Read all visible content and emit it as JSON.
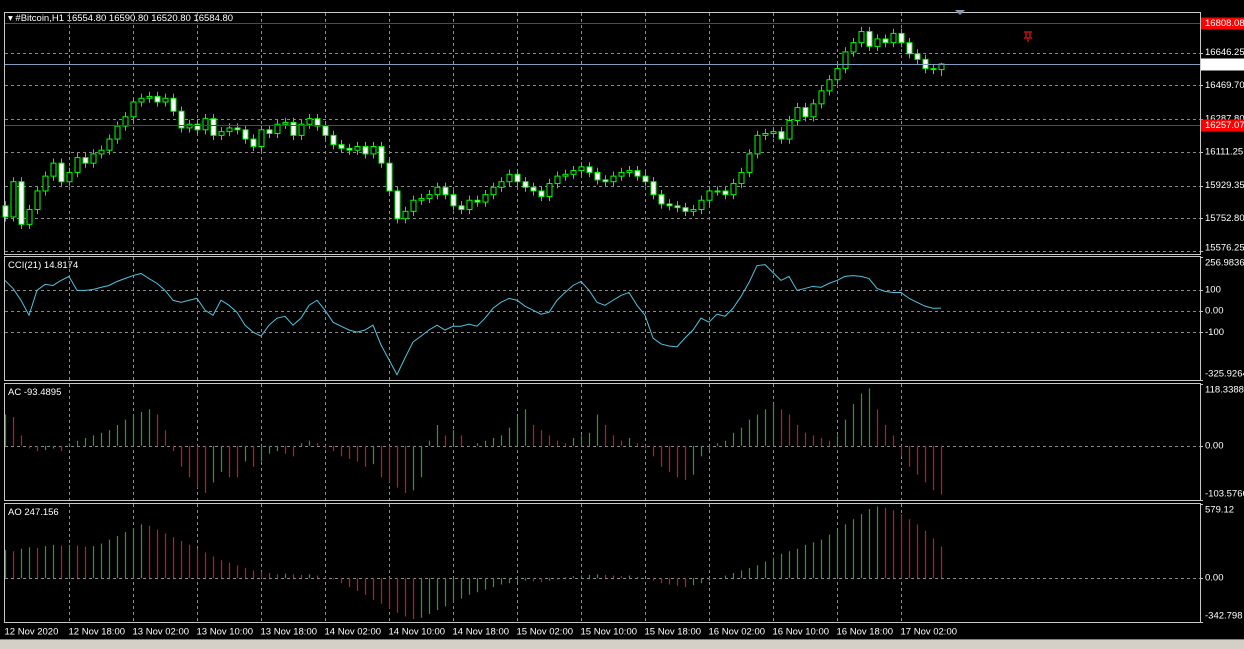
{
  "chart_data": [
    {
      "type": "candlestick",
      "title": "#Bitcoin,H1",
      "ohlc_labels": [
        "16554.80",
        "16590.80",
        "16520.80",
        "16584.80"
      ],
      "open": [
        15820,
        15760,
        15950,
        15720,
        15800,
        15900,
        15980,
        16050,
        15950,
        16000,
        16080,
        16050,
        16100,
        16120,
        16180,
        16250,
        16300,
        16380,
        16400,
        16410,
        16380,
        16400,
        16330,
        16240,
        16260,
        16230,
        16290,
        16200,
        16220,
        16240,
        16230,
        16180,
        16140,
        16230,
        16210,
        16260,
        16270,
        16200,
        16260,
        16290,
        16250,
        16200,
        16150,
        16130,
        16120,
        16140,
        16100,
        16140,
        16050,
        15900,
        15750,
        15790,
        15850,
        15860,
        15880,
        15920,
        15880,
        15820,
        15800,
        15850,
        15840,
        15880,
        15920,
        15950,
        15990,
        15950,
        15920,
        15900,
        15870,
        15940,
        15980,
        15990,
        16010,
        16030,
        16000,
        15960,
        15950,
        15980,
        16000,
        16010,
        15980,
        15950,
        15880,
        15830,
        15820,
        15810,
        15790,
        15800,
        15850,
        15900,
        15900,
        15880,
        15940,
        16000,
        16100,
        16200,
        16210,
        16220,
        16180,
        16280,
        16350,
        16300,
        16370,
        16440,
        16500,
        16560,
        16650,
        16700,
        16760,
        16680,
        16720,
        16700,
        16750,
        16700,
        16640,
        16610,
        16560,
        16554.8
      ],
      "high": [
        15845,
        15975,
        15975,
        15825,
        15925,
        16005,
        16075,
        16075,
        16025,
        16105,
        16105,
        16125,
        16145,
        16205,
        16275,
        16325,
        16405,
        16425,
        16435,
        16435,
        16425,
        16425,
        16355,
        16285,
        16285,
        16315,
        16315,
        16245,
        16265,
        16265,
        16255,
        16205,
        16255,
        16255,
        16285,
        16295,
        16295,
        16285,
        16315,
        16315,
        16275,
        16225,
        16175,
        16155,
        16165,
        16165,
        16165,
        16165,
        16075,
        15925,
        15815,
        15875,
        15885,
        15905,
        15945,
        15945,
        15905,
        15845,
        15875,
        15875,
        15905,
        15945,
        15975,
        16015,
        16015,
        15975,
        15945,
        15925,
        15965,
        16005,
        16015,
        16035,
        16055,
        16055,
        16025,
        15985,
        16005,
        16025,
        16035,
        16035,
        16005,
        15975,
        15905,
        15855,
        15845,
        15835,
        15825,
        15875,
        15925,
        15925,
        15925,
        15965,
        16025,
        16125,
        16225,
        16235,
        16245,
        16245,
        16305,
        16375,
        16375,
        16395,
        16465,
        16525,
        16585,
        16675,
        16725,
        16785,
        16785,
        16745,
        16745,
        16775,
        16775,
        16725,
        16665,
        16635,
        16585,
        16590.8
      ],
      "low": [
        15735,
        15735,
        15695,
        15695,
        15775,
        15875,
        15955,
        15925,
        15925,
        15975,
        16025,
        16025,
        16075,
        16095,
        16155,
        16225,
        16275,
        16355,
        16375,
        16355,
        16355,
        16305,
        16215,
        16215,
        16205,
        16205,
        16175,
        16175,
        16195,
        16205,
        16155,
        16115,
        16115,
        16185,
        16185,
        16235,
        16175,
        16175,
        16235,
        16225,
        16175,
        16125,
        16105,
        16095,
        16095,
        16075,
        16075,
        16025,
        15875,
        15725,
        15725,
        15765,
        15825,
        15835,
        15855,
        15855,
        15795,
        15775,
        15775,
        15815,
        15815,
        15855,
        15895,
        15925,
        15925,
        15895,
        15875,
        15845,
        15845,
        15915,
        15955,
        15965,
        15985,
        15975,
        15935,
        15925,
        15925,
        15955,
        15975,
        15955,
        15925,
        15855,
        15805,
        15795,
        15785,
        15765,
        15765,
        15775,
        15825,
        15875,
        15855,
        15855,
        15915,
        15975,
        16075,
        16175,
        16185,
        16155,
        16155,
        16255,
        16275,
        16275,
        16345,
        16415,
        16475,
        16535,
        16625,
        16675,
        16655,
        16655,
        16675,
        16675,
        16675,
        16615,
        16585,
        16535,
        16530,
        16520.8
      ],
      "close": [
        15760,
        15950,
        15720,
        15800,
        15900,
        15980,
        16050,
        15950,
        16000,
        16080,
        16050,
        16100,
        16120,
        16180,
        16250,
        16300,
        16380,
        16400,
        16410,
        16380,
        16400,
        16330,
        16240,
        16260,
        16230,
        16290,
        16200,
        16220,
        16240,
        16230,
        16180,
        16140,
        16230,
        16210,
        16260,
        16270,
        16200,
        16260,
        16290,
        16250,
        16200,
        16150,
        16130,
        16120,
        16140,
        16100,
        16140,
        16050,
        15900,
        15750,
        15790,
        15850,
        15860,
        15880,
        15920,
        15880,
        15820,
        15800,
        15850,
        15840,
        15880,
        15920,
        15950,
        15990,
        15950,
        15920,
        15900,
        15870,
        15940,
        15980,
        15990,
        16010,
        16030,
        16000,
        15960,
        15950,
        15980,
        16000,
        16010,
        15980,
        15950,
        15880,
        15830,
        15820,
        15810,
        15790,
        15800,
        15850,
        15900,
        15900,
        15880,
        15940,
        16000,
        16100,
        16200,
        16210,
        16220,
        16180,
        16280,
        16350,
        16300,
        16370,
        16440,
        16500,
        16560,
        16650,
        16700,
        16760,
        16680,
        16720,
        16700,
        16750,
        16700,
        16640,
        16610,
        16560,
        16554.8,
        16584.8
      ],
      "up_fill": "#000000",
      "down_fill": "#ffffff",
      "wick_color": "#00ff00",
      "xlim": [
        0,
        149
      ],
      "xticks": [
        {
          "value": 0,
          "label": "12 Nov 2020"
        },
        {
          "value": 8,
          "label": "12 Nov 18:00"
        },
        {
          "value": 16,
          "label": "13 Nov 02:00"
        },
        {
          "value": 24,
          "label": "13 Nov 10:00"
        },
        {
          "value": 32,
          "label": "13 Nov 18:00"
        },
        {
          "value": 40,
          "label": "14 Nov 02:00"
        },
        {
          "value": 48,
          "label": "14 Nov 10:00"
        },
        {
          "value": 56,
          "label": "14 Nov 18:00"
        },
        {
          "value": 64,
          "label": "15 Nov 02:00"
        },
        {
          "value": 72,
          "label": "15 Nov 10:00"
        },
        {
          "value": 80,
          "label": "15 Nov 18:00"
        },
        {
          "value": 88,
          "label": "16 Nov 02:00"
        },
        {
          "value": 96,
          "label": "16 Nov 10:00"
        },
        {
          "value": 104,
          "label": "16 Nov 18:00"
        },
        {
          "value": 112,
          "label": "17 Nov 02:00"
        }
      ],
      "ylim": [
        15560,
        16860
      ],
      "yticks": [
        16646.25,
        {
          "value": 16469.7,
          "label": "16469.70"
        },
        {
          "value": 16287.8,
          "label": "16287.80"
        },
        16111.25,
        15929.35,
        {
          "value": 15752.8,
          "label": "15752.80"
        },
        15576.25
      ],
      "hlines": [
        16808.08,
        16257.07
      ],
      "hline_color": "#ff0000",
      "price_line": {
        "value": 16584.8,
        "label": "16584.80"
      },
      "price_line_color": "#7f9fbf",
      "grid": true
    },
    {
      "type": "line",
      "title": "CCI(21)",
      "color": "#4fc3e0",
      "values": [
        146,
        108,
        52,
        -19,
        99,
        127,
        122,
        146,
        165,
        99,
        99,
        103,
        113,
        122,
        141,
        155,
        169,
        179,
        155,
        132,
        99,
        52,
        42,
        52,
        61,
        5,
        -19,
        52,
        28,
        -5,
        -66,
        -99,
        -118,
        -66,
        -33,
        -24,
        -66,
        -33,
        28,
        52,
        5,
        -52,
        -71,
        -89,
        -99,
        -89,
        -66,
        -160,
        -230,
        -301,
        -221,
        -146,
        -118,
        -89,
        -66,
        -89,
        -71,
        -71,
        -61,
        -71,
        -33,
        14,
        42,
        61,
        52,
        24,
        5,
        -14,
        -5,
        52,
        89,
        122,
        141,
        99,
        42,
        28,
        52,
        75,
        89,
        28,
        -19,
        -127,
        -155,
        -165,
        -169,
        -127,
        -89,
        -33,
        -52,
        -14,
        -24,
        14,
        70,
        136,
        216,
        221,
        183,
        146,
        165,
        99,
        108,
        118,
        113,
        132,
        146,
        165,
        169,
        165,
        155,
        108,
        94,
        89,
        89,
        61,
        42,
        24,
        14,
        14.8174
      ],
      "ylim": [
        -325.9264,
        256.9836
      ],
      "yticks": [
        256.9836,
        100,
        {
          "value": 0,
          "label": "0.00"
        },
        -100,
        -325.9264
      ],
      "grid": true
    },
    {
      "type": "bar",
      "title": "AC",
      "up_color": "#2e9b2e",
      "down_color": "#e01010",
      "values": [
        60,
        55,
        20,
        -5,
        -10,
        -8,
        -5,
        -10,
        5,
        10,
        15,
        20,
        25,
        30,
        40,
        50,
        60,
        65,
        70,
        60,
        30,
        -10,
        -40,
        -60,
        -80,
        -90,
        -70,
        -50,
        -60,
        -60,
        -30,
        -40,
        -30,
        -15,
        -10,
        -15,
        -20,
        5,
        10,
        5,
        -5,
        -10,
        -20,
        -25,
        -30,
        -40,
        -35,
        -60,
        -70,
        -80,
        -90,
        -85,
        -60,
        10,
        40,
        20,
        30,
        20,
        0,
        5,
        10,
        15,
        20,
        35,
        55,
        70,
        40,
        30,
        20,
        10,
        5,
        15,
        20,
        25,
        60,
        40,
        20,
        10,
        15,
        5,
        -5,
        -20,
        -40,
        -50,
        -60,
        -65,
        -55,
        -20,
        -10,
        5,
        10,
        25,
        35,
        50,
        60,
        70,
        80,
        70,
        60,
        40,
        25,
        20,
        15,
        10,
        20,
        50,
        80,
        100,
        110,
        70,
        40,
        20,
        -20,
        -40,
        -55,
        -70,
        -85,
        -93.4895
      ],
      "ylim": [
        -103.5766,
        118.3388
      ],
      "yticks": [
        118.3388,
        {
          "value": 0,
          "label": "0.00"
        },
        -103.5766
      ],
      "grid": true
    },
    {
      "type": "bar",
      "title": "AO",
      "up_color": "#2e9b2e",
      "down_color": "#e01010",
      "values": [
        220,
        210,
        230,
        240,
        235,
        250,
        260,
        255,
        260,
        255,
        245,
        250,
        270,
        300,
        330,
        360,
        390,
        420,
        410,
        380,
        350,
        320,
        290,
        260,
        230,
        200,
        170,
        140,
        120,
        100,
        80,
        60,
        50,
        40,
        30,
        35,
        30,
        25,
        30,
        20,
        10,
        -10,
        -40,
        -70,
        -100,
        -130,
        -170,
        -200,
        -240,
        -270,
        -300,
        -320,
        -310,
        -280,
        -250,
        -220,
        -190,
        -160,
        -130,
        -110,
        -90,
        -70,
        -50,
        -40,
        -30,
        -20,
        -25,
        -30,
        -20,
        -10,
        5,
        15,
        20,
        25,
        30,
        25,
        20,
        15,
        20,
        10,
        0,
        -20,
        -40,
        -50,
        -60,
        -70,
        -55,
        -40,
        -20,
        0,
        20,
        40,
        60,
        80,
        100,
        130,
        160,
        190,
        210,
        230,
        260,
        280,
        300,
        340,
        380,
        420,
        460,
        500,
        540,
        560,
        550,
        530,
        500,
        460,
        420,
        370,
        310,
        247.156
      ],
      "ylim": [
        -342.798,
        579.12
      ],
      "yticks": [
        579.12,
        {
          "value": 0,
          "label": "0.00"
        },
        -342.798
      ],
      "grid": true
    }
  ]
}
